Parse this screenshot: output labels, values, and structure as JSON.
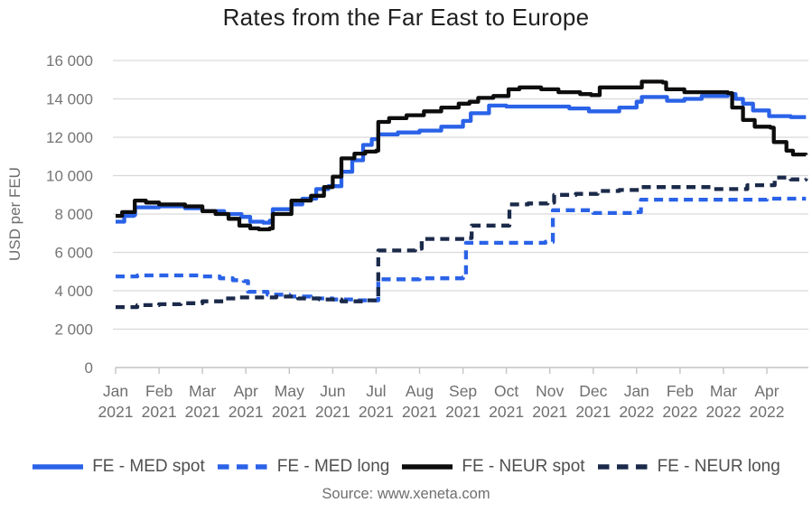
{
  "title": "Rates from the Far East to Europe",
  "source": "Source: www.xeneta.com",
  "y_axis": {
    "label": "USD per FEU",
    "tick_labels": [
      "0",
      "2 000",
      "4 000",
      "6 000",
      "8 000",
      "10 000",
      "12 000",
      "14 000",
      "16 000"
    ],
    "min": 0,
    "max": 16000,
    "step": 2000
  },
  "x_axis": {
    "labels": [
      [
        "Jan",
        "2021"
      ],
      [
        "Feb",
        "2021"
      ],
      [
        "Mar",
        "2021"
      ],
      [
        "Apr",
        "2021"
      ],
      [
        "May",
        "2021"
      ],
      [
        "Jun",
        "2021"
      ],
      [
        "Jul",
        "2021"
      ],
      [
        "Aug",
        "2021"
      ],
      [
        "Sep",
        "2021"
      ],
      [
        "Oct",
        "2021"
      ],
      [
        "Nov",
        "2021"
      ],
      [
        "Dec",
        "2021"
      ],
      [
        "Jan",
        "2022"
      ],
      [
        "Feb",
        "2022"
      ],
      [
        "Mar",
        "2022"
      ],
      [
        "Apr",
        "2022"
      ]
    ]
  },
  "legend": {
    "items": [
      {
        "label": "FE - MED spot"
      },
      {
        "label": "FE - MED long"
      },
      {
        "label": "FE - NEUR spot"
      },
      {
        "label": "FE - NEUR long"
      }
    ]
  },
  "colors": {
    "med_blue": "#2a62e8",
    "neur_black": "#0d0d0d",
    "neur_navy": "#1b2a4a",
    "grid": "#d9d9d9",
    "axis": "#c4c4c4",
    "axis_text": "#757575",
    "title_text": "#1f1f1f"
  },
  "chart_data": {
    "type": "line",
    "title": "Rates from the Far East to Europe",
    "ylabel": "USD per FEU",
    "x_unit": "months since Jan 2021 (0 = Jan 2021, 15 = Apr 2022)",
    "xlim": [
      0,
      16
    ],
    "ylim": [
      0,
      16000
    ],
    "grid": "horizontal",
    "legend_position": "bottom",
    "interpolation": "step-after",
    "series": [
      {
        "name": "FE - MED spot",
        "color": "#2a62e8",
        "dash": "solid",
        "points": [
          [
            0,
            7600
          ],
          [
            0.2,
            7900
          ],
          [
            0.42,
            7950
          ],
          [
            0.45,
            8350
          ],
          [
            1,
            8400
          ],
          [
            1.6,
            8300
          ],
          [
            2,
            8150
          ],
          [
            2.5,
            8000
          ],
          [
            2.9,
            7850
          ],
          [
            3.1,
            7600
          ],
          [
            3.4,
            7550
          ],
          [
            3.55,
            7650
          ],
          [
            3.62,
            8250
          ],
          [
            4.05,
            8500
          ],
          [
            4.3,
            8800
          ],
          [
            4.62,
            9300
          ],
          [
            4.9,
            9450
          ],
          [
            5.2,
            10200
          ],
          [
            5.45,
            10800
          ],
          [
            5.7,
            11600
          ],
          [
            5.9,
            11900
          ],
          [
            6.05,
            12150
          ],
          [
            6.5,
            12250
          ],
          [
            7,
            12350
          ],
          [
            7.5,
            12550
          ],
          [
            8,
            12850
          ],
          [
            8.18,
            13250
          ],
          [
            8.6,
            13650
          ],
          [
            9,
            13600
          ],
          [
            9.6,
            13600
          ],
          [
            10.1,
            13600
          ],
          [
            10.45,
            13500
          ],
          [
            10.9,
            13350
          ],
          [
            11.3,
            13350
          ],
          [
            11.6,
            13550
          ],
          [
            12,
            13850
          ],
          [
            12.12,
            14100
          ],
          [
            12.62,
            14100
          ],
          [
            12.7,
            13900
          ],
          [
            13.1,
            14000
          ],
          [
            13.5,
            14150
          ],
          [
            14.1,
            14250
          ],
          [
            14.28,
            14000
          ],
          [
            14.45,
            13750
          ],
          [
            14.68,
            13400
          ],
          [
            15.05,
            13100
          ],
          [
            15.55,
            13050
          ],
          [
            15.9,
            13050
          ]
        ]
      },
      {
        "name": "FE - MED long",
        "color": "#2a62e8",
        "dash": "dashed",
        "points": [
          [
            0,
            4750
          ],
          [
            0.5,
            4800
          ],
          [
            1.5,
            4800
          ],
          [
            2,
            4750
          ],
          [
            2.4,
            4650
          ],
          [
            2.7,
            4550
          ],
          [
            2.95,
            4500
          ],
          [
            3.05,
            3950
          ],
          [
            3.5,
            3800
          ],
          [
            4,
            3700
          ],
          [
            4.5,
            3600
          ],
          [
            5,
            3550
          ],
          [
            5.5,
            3500
          ],
          [
            6,
            3500
          ],
          [
            6.05,
            4600
          ],
          [
            7,
            4650
          ],
          [
            8,
            4700
          ],
          [
            8.07,
            6500
          ],
          [
            9,
            6500
          ],
          [
            9.9,
            6550
          ],
          [
            10.07,
            8200
          ],
          [
            10.6,
            8200
          ],
          [
            11,
            8050
          ],
          [
            11.6,
            8050
          ],
          [
            12,
            8100
          ],
          [
            12.1,
            8750
          ],
          [
            13,
            8750
          ],
          [
            14,
            8750
          ],
          [
            15,
            8800
          ],
          [
            15.9,
            8800
          ]
        ]
      },
      {
        "name": "FE - NEUR spot",
        "color": "#0d0d0d",
        "dash": "solid",
        "points": [
          [
            0,
            7900
          ],
          [
            0.15,
            8100
          ],
          [
            0.44,
            8700
          ],
          [
            0.7,
            8600
          ],
          [
            1,
            8500
          ],
          [
            1.6,
            8400
          ],
          [
            2,
            8150
          ],
          [
            2.3,
            8000
          ],
          [
            2.6,
            7750
          ],
          [
            2.85,
            7400
          ],
          [
            3.1,
            7250
          ],
          [
            3.3,
            7200
          ],
          [
            3.55,
            7250
          ],
          [
            3.62,
            8000
          ],
          [
            4.05,
            8700
          ],
          [
            4.5,
            8950
          ],
          [
            4.8,
            9400
          ],
          [
            5,
            9950
          ],
          [
            5.2,
            10900
          ],
          [
            5.5,
            11150
          ],
          [
            5.75,
            11250
          ],
          [
            6,
            11300
          ],
          [
            6.05,
            12800
          ],
          [
            6.3,
            13000
          ],
          [
            6.7,
            13150
          ],
          [
            7.1,
            13350
          ],
          [
            7.5,
            13550
          ],
          [
            7.9,
            13750
          ],
          [
            8.15,
            13850
          ],
          [
            8.35,
            14050
          ],
          [
            8.7,
            14150
          ],
          [
            9.05,
            14500
          ],
          [
            9.3,
            14600
          ],
          [
            9.8,
            14500
          ],
          [
            10.2,
            14350
          ],
          [
            10.7,
            14250
          ],
          [
            10.95,
            14200
          ],
          [
            11.15,
            14600
          ],
          [
            12.05,
            14600
          ],
          [
            12.12,
            14900
          ],
          [
            12.6,
            14850
          ],
          [
            12.68,
            14500
          ],
          [
            13.1,
            14350
          ],
          [
            14.1,
            14300
          ],
          [
            14.2,
            13550
          ],
          [
            14.45,
            12900
          ],
          [
            14.72,
            12550
          ],
          [
            15.08,
            12500
          ],
          [
            15.16,
            11750
          ],
          [
            15.45,
            11300
          ],
          [
            15.6,
            11100
          ],
          [
            15.9,
            11080
          ]
        ]
      },
      {
        "name": "FE - NEUR long",
        "color": "#1b2a4a",
        "dash": "dashed",
        "points": [
          [
            0,
            3150
          ],
          [
            0.5,
            3250
          ],
          [
            1,
            3300
          ],
          [
            1.5,
            3350
          ],
          [
            2,
            3450
          ],
          [
            2.5,
            3600
          ],
          [
            2.8,
            3650
          ],
          [
            3.3,
            3650
          ],
          [
            3.7,
            3700
          ],
          [
            4.2,
            3600
          ],
          [
            4.7,
            3550
          ],
          [
            5.2,
            3450
          ],
          [
            5.7,
            3500
          ],
          [
            6,
            3500
          ],
          [
            6.05,
            6100
          ],
          [
            6.5,
            6100
          ],
          [
            6.9,
            6200
          ],
          [
            7.05,
            6700
          ],
          [
            7.6,
            6700
          ],
          [
            8.1,
            6750
          ],
          [
            8.2,
            7400
          ],
          [
            9,
            7400
          ],
          [
            9.07,
            8500
          ],
          [
            9.5,
            8550
          ],
          [
            9.95,
            8600
          ],
          [
            10.1,
            9000
          ],
          [
            10.6,
            9050
          ],
          [
            11.1,
            9200
          ],
          [
            11.6,
            9250
          ],
          [
            12.1,
            9400
          ],
          [
            13.1,
            9400
          ],
          [
            13.7,
            9300
          ],
          [
            14.45,
            9300
          ],
          [
            14.55,
            9500
          ],
          [
            15.1,
            9500
          ],
          [
            15.18,
            9900
          ],
          [
            15.55,
            9800
          ],
          [
            15.9,
            9850
          ]
        ]
      }
    ]
  }
}
